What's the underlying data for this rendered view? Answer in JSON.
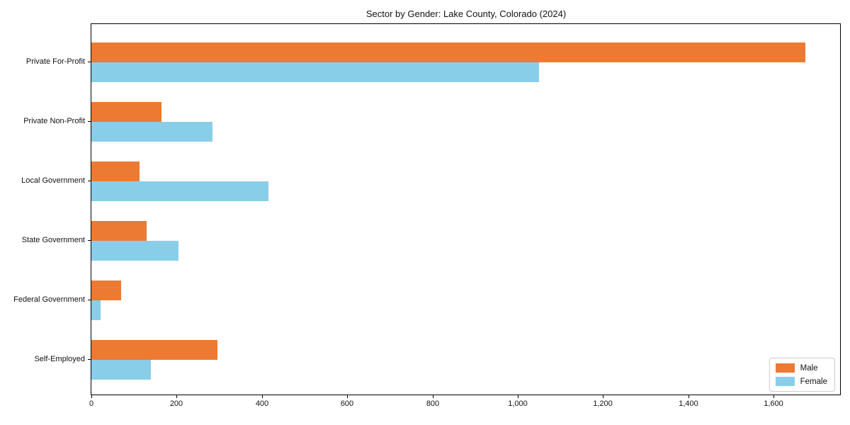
{
  "chart_data": {
    "type": "bar",
    "orientation": "horizontal",
    "title": "Sector by Gender: Lake County, Colorado (2024)",
    "xlabel": "",
    "ylabel": "",
    "categories": [
      "Private For-Profit",
      "Private Non-Profit",
      "Local Government",
      "State Government",
      "Federal Government",
      "Self-Employed"
    ],
    "series": [
      {
        "name": "Male",
        "color": "#ec7a33",
        "values": [
          1675,
          165,
          113,
          130,
          70,
          295
        ]
      },
      {
        "name": "Female",
        "color": "#89cee9",
        "values": [
          1050,
          284,
          415,
          205,
          22,
          139
        ]
      }
    ],
    "xlim": [
      0,
      1756
    ],
    "x_ticks": [
      0,
      200,
      400,
      600,
      800,
      1000,
      1200,
      1400,
      1600
    ],
    "x_tick_labels": [
      "0",
      "200",
      "400",
      "600",
      "800",
      "1,000",
      "1,200",
      "1,400",
      "1,600"
    ],
    "grid": false,
    "legend_position": "lower right",
    "spine_color": "#000000"
  }
}
